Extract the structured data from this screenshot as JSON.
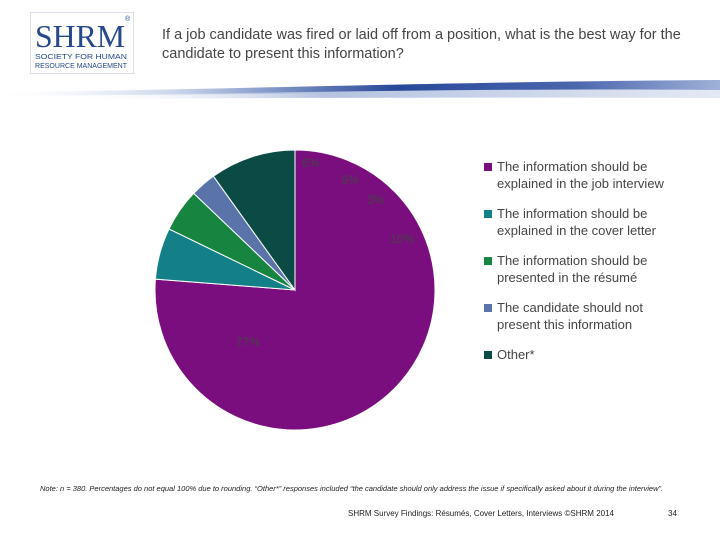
{
  "logo": {
    "big": "SHRM",
    "line1": "SOCIETY FOR HUMAN",
    "line2": "RESOURCE MANAGEMENT",
    "mark": "®"
  },
  "question": "If a job candidate was fired or laid off from a position, what is the best way for the candidate to present this information?",
  "chart_data": {
    "type": "pie",
    "start_angle_deg": 0,
    "slices": [
      {
        "name": "The information should be explained in the job interview",
        "value": 77,
        "label": "77%",
        "color": "#7b0e7e"
      },
      {
        "name": "The information should be explained in the cover letter",
        "value": 6,
        "label": "6%",
        "color": "#138088"
      },
      {
        "name": "The information should be presented in the résumé",
        "value": 5,
        "label": "5%",
        "color": "#17843f"
      },
      {
        "name": "The candidate should not present this information",
        "value": 3,
        "label": "3%",
        "color": "#5a73a8"
      },
      {
        "name": "Other*",
        "value": 10,
        "label": "10%",
        "color": "#0c4a45"
      }
    ],
    "legend_position": "right"
  },
  "legend": [
    {
      "label": "The information should be explained in the job interview",
      "color": "#7b0e7e"
    },
    {
      "label": "The information should be explained in the cover letter",
      "color": "#138088"
    },
    {
      "label": "The information should be presented in the résumé",
      "color": "#17843f"
    },
    {
      "label": "The candidate should not present this information",
      "color": "#5a73a8"
    },
    {
      "label": "Other*",
      "color": "#0c4a45"
    }
  ],
  "note": "Note: n = 380. Percentages do not equal 100% due to rounding. “Other*” responses included “the candidate should only address the issue if specifically asked about it during the interview”.",
  "footer": {
    "source": "SHRM Survey Findings: Résumés, Cover Letters, Interviews ©SHRM 2014",
    "page": "34"
  }
}
